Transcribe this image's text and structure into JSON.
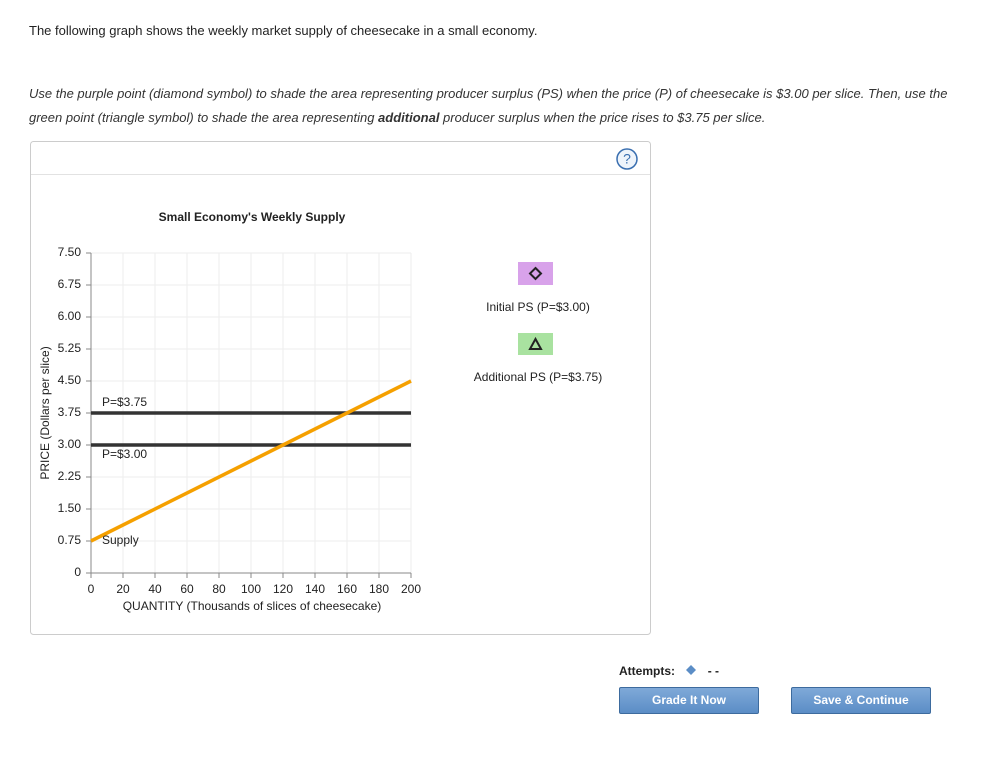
{
  "intro": "The following graph shows the weekly market supply of cheesecake in a small economy.",
  "instruction": {
    "before": "Use the purple point (diamond symbol) to shade the area representing producer surplus (PS) when the price (P) of cheesecake is $3.00 per slice. Then, use the green point (triangle symbol) to shade the area representing ",
    "emphasis": "additional",
    "after": " producer surplus when the price rises to $3.75 per slice."
  },
  "help": "?",
  "tools": [
    {
      "label": "Initial PS (P=$3.00)",
      "color": "#d8a2ea",
      "symbol": "diamond"
    },
    {
      "label": "Additional PS (P=$3.75)",
      "color": "#a9e2a0",
      "symbol": "triangle"
    }
  ],
  "chart_data": {
    "type": "line",
    "title": "Small Economy's Weekly Supply",
    "x_label": "QUANTITY (Thousands of slices of cheesecake)",
    "y_label": "PRICE (Dollars per slice)",
    "xlim": [
      0,
      200
    ],
    "xticks": [
      0,
      20,
      40,
      60,
      80,
      100,
      120,
      140,
      160,
      180,
      200
    ],
    "ylim": [
      0,
      7.5
    ],
    "yticks": [
      0,
      0.75,
      {
        "value": 1.5,
        "label": "1.50"
      },
      2.25,
      {
        "value": 3,
        "label": "3.00"
      },
      3.75,
      {
        "value": 4.5,
        "label": "4.50"
      },
      5.25,
      {
        "value": 6,
        "label": "6.00"
      },
      6.75,
      {
        "value": 7.5,
        "label": "7.50"
      }
    ],
    "grid": true,
    "series": [
      {
        "name": "P=$3.75",
        "color": "#333333",
        "x": [
          0,
          200
        ],
        "values": [
          3.75,
          3.75
        ]
      },
      {
        "name": "P=$3.00",
        "color": "#333333",
        "x": [
          0,
          200
        ],
        "values": [
          3,
          3
        ]
      },
      {
        "name": "Supply",
        "color": "#f5a000",
        "x": [
          0,
          200
        ],
        "values": [
          0.75,
          4.5
        ]
      }
    ]
  },
  "attempts_label": "Attempts:",
  "attempts_value": "- -",
  "buttons": [
    "Grade It Now",
    "Save & Continue"
  ]
}
